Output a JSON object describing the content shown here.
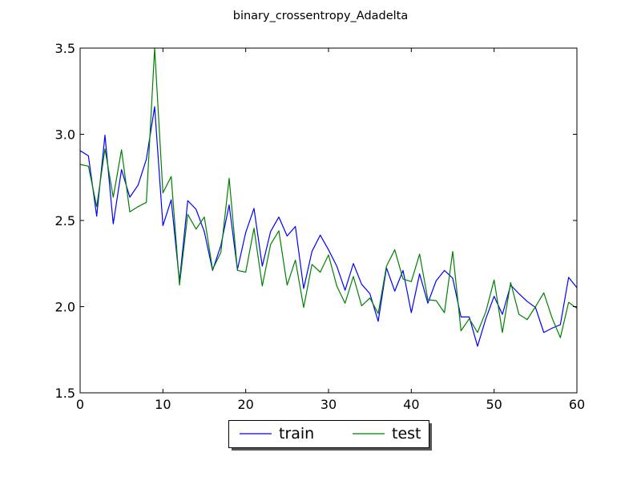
{
  "chart_data": {
    "type": "line",
    "title": "binary_crossentropy_Adadelta",
    "xlabel": "",
    "ylabel": "",
    "xlim": [
      0,
      60
    ],
    "ylim": [
      1.5,
      3.5
    ],
    "xticks": [
      0,
      10,
      20,
      30,
      40,
      50,
      60
    ],
    "yticks": [
      1.5,
      2.0,
      2.5,
      3.0,
      3.5
    ],
    "xtick_labels": [
      "0",
      "10",
      "20",
      "30",
      "40",
      "50",
      "60"
    ],
    "ytick_labels": [
      "1.5",
      "2.0",
      "2.5",
      "3.0",
      "3.5"
    ],
    "grid": false,
    "legend_position": "below plot, center",
    "x": [
      0,
      1,
      2,
      3,
      4,
      5,
      6,
      7,
      8,
      9,
      10,
      11,
      12,
      13,
      14,
      15,
      16,
      17,
      18,
      19,
      20,
      21,
      22,
      23,
      24,
      25,
      26,
      27,
      28,
      29,
      30,
      31,
      32,
      33,
      34,
      35,
      36,
      37,
      38,
      39,
      40,
      41,
      42,
      43,
      44,
      45,
      46,
      47,
      48,
      49,
      50,
      51,
      52,
      53,
      54,
      55,
      56,
      57,
      58,
      59,
      60
    ],
    "series": [
      {
        "name": "train",
        "color": "#0000ff",
        "values": [
          2.905,
          2.875,
          2.525,
          2.995,
          2.48,
          2.795,
          2.635,
          2.705,
          2.855,
          3.16,
          2.47,
          2.62,
          2.145,
          2.615,
          2.565,
          2.435,
          2.21,
          2.355,
          2.59,
          2.215,
          2.43,
          2.57,
          2.235,
          2.435,
          2.52,
          2.41,
          2.465,
          2.105,
          2.32,
          2.415,
          2.33,
          2.235,
          2.095,
          2.25,
          2.13,
          2.075,
          1.915,
          2.225,
          2.09,
          2.21,
          1.965,
          2.19,
          2.02,
          2.15,
          2.21,
          2.165,
          1.94,
          1.94,
          1.77,
          1.93,
          2.06,
          1.955,
          2.125,
          2.075,
          2.03,
          1.995,
          1.85,
          1.875,
          1.895,
          2.17,
          2.11
        ]
      },
      {
        "name": "test",
        "color": "#008000",
        "values": [
          2.825,
          2.815,
          2.58,
          2.915,
          2.635,
          2.91,
          2.55,
          2.58,
          2.605,
          3.5,
          2.66,
          2.755,
          2.125,
          2.535,
          2.45,
          2.52,
          2.215,
          2.315,
          2.745,
          2.21,
          2.2,
          2.455,
          2.12,
          2.36,
          2.44,
          2.125,
          2.27,
          1.995,
          2.245,
          2.2,
          2.3,
          2.12,
          2.02,
          2.175,
          2.005,
          2.05,
          1.96,
          2.235,
          2.33,
          2.16,
          2.145,
          2.305,
          2.04,
          2.035,
          1.965,
          2.32,
          1.86,
          1.93,
          1.85,
          1.97,
          2.155,
          1.85,
          2.14,
          1.955,
          1.925,
          2.0,
          2.08,
          1.935,
          1.82,
          2.025,
          1.99
        ]
      }
    ]
  }
}
